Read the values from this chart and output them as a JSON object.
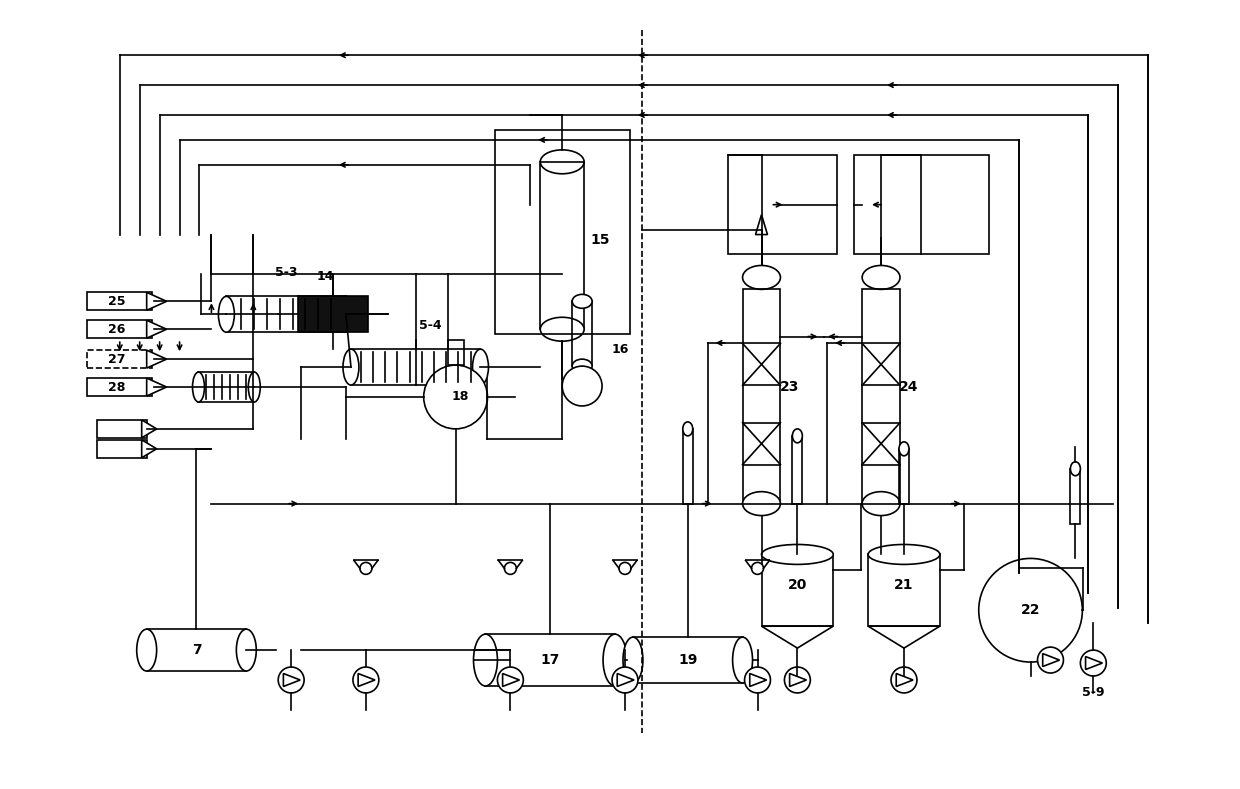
{
  "bg_color": "#ffffff",
  "line_color": "#000000",
  "fig_width": 12.4,
  "fig_height": 7.89,
  "dpi": 100
}
